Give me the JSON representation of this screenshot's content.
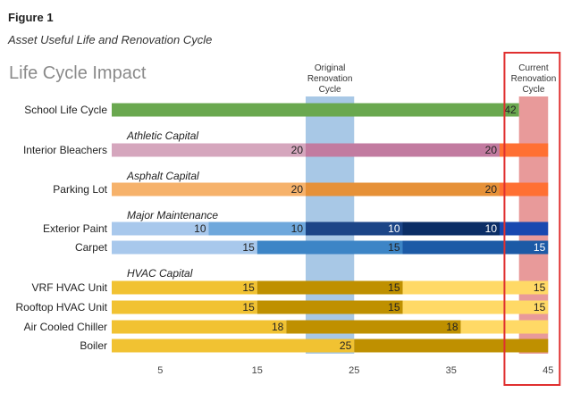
{
  "figure_label": "Figure 1",
  "figure_caption": "Asset Useful Life and Renovation Cycle",
  "chart_data": {
    "type": "bar",
    "orientation": "horizontal",
    "stacked": true,
    "title": "Life Cycle Impact",
    "xlabel": "",
    "ylabel": "",
    "xlim": [
      0,
      45
    ],
    "xticks": [
      5,
      15,
      25,
      35,
      45
    ],
    "grid": false,
    "bands": [
      {
        "label": "Original\nRenovation\nCycle",
        "from": 20,
        "to": 25,
        "color": "#a8c8e6"
      },
      {
        "label": "Current\nRenovation\nCycle",
        "from": 42,
        "to": 45,
        "color": "#e89a9a"
      }
    ],
    "highlight_box": {
      "from": 40.5,
      "to": 46.2,
      "color": "#e03030"
    },
    "groups": [
      {
        "row_after": "School Life Cycle",
        "label": "Athletic Capital"
      },
      {
        "row_after": "Interior Bleachers",
        "label": "Asphalt Capital"
      },
      {
        "row_after": "Parking Lot",
        "label": "Major Maintenance"
      },
      {
        "row_after": "Carpet",
        "label": "HVAC Capital"
      }
    ],
    "rows": [
      {
        "label": "School Life Cycle",
        "segments": [
          {
            "value": 42,
            "color": "#6aa84f",
            "text": "42"
          }
        ]
      },
      {
        "label": "Interior Bleachers",
        "segments": [
          {
            "value": 20,
            "color": "#d5a6bd",
            "text": "20"
          },
          {
            "value": 20,
            "color": "#c27ba0",
            "text": "20"
          },
          {
            "value": 5,
            "color": "#ff7033",
            "text": ""
          }
        ]
      },
      {
        "label": "Parking Lot",
        "segments": [
          {
            "value": 20,
            "color": "#f6b26b",
            "text": "20"
          },
          {
            "value": 20,
            "color": "#e69138",
            "text": "20"
          },
          {
            "value": 5,
            "color": "#ff7033",
            "text": ""
          }
        ]
      },
      {
        "label": "Exterior Paint",
        "segments": [
          {
            "value": 10,
            "color": "#a8c8ec",
            "text": "10"
          },
          {
            "value": 10,
            "color": "#6fa8dc",
            "text": "10"
          },
          {
            "value": 10,
            "color": "#1c4587",
            "text": "10"
          },
          {
            "value": 10,
            "color": "#0b2e66",
            "text": "10"
          },
          {
            "value": 5,
            "color": "#1848b0",
            "text": ""
          }
        ]
      },
      {
        "label": "Carpet",
        "segments": [
          {
            "value": 15,
            "color": "#a8c8ec",
            "text": "15"
          },
          {
            "value": 15,
            "color": "#3d85c6",
            "text": "15"
          },
          {
            "value": 15,
            "color": "#1c5aa6",
            "text": "15"
          }
        ]
      },
      {
        "label": "VRF HVAC Unit",
        "segments": [
          {
            "value": 15,
            "color": "#f1c232",
            "text": "15"
          },
          {
            "value": 15,
            "color": "#bf9000",
            "text": "15"
          },
          {
            "value": 15,
            "color": "#ffd966",
            "text": "15"
          }
        ]
      },
      {
        "label": "Rooftop HVAC Unit",
        "segments": [
          {
            "value": 15,
            "color": "#f1c232",
            "text": "15"
          },
          {
            "value": 15,
            "color": "#bf9000",
            "text": "15"
          },
          {
            "value": 15,
            "color": "#ffd966",
            "text": "15"
          }
        ]
      },
      {
        "label": "Air Cooled Chiller",
        "segments": [
          {
            "value": 18,
            "color": "#f1c232",
            "text": "18"
          },
          {
            "value": 18,
            "color": "#bf9000",
            "text": "18"
          },
          {
            "value": 9,
            "color": "#ffd966",
            "text": ""
          }
        ]
      },
      {
        "label": "Boiler",
        "segments": [
          {
            "value": 25,
            "color": "#f1c232",
            "text": "25"
          },
          {
            "value": 20,
            "color": "#bf9000",
            "text": ""
          }
        ]
      }
    ]
  }
}
